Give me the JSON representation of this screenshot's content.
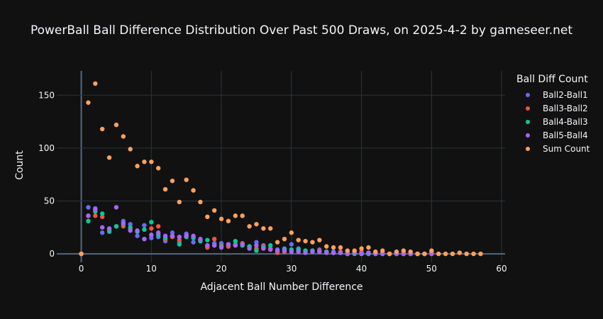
{
  "chart_data": {
    "type": "scatter",
    "title": "PowerBall Ball Difference Distribution Over Past 500 Draws, on 2025-4-2 by gameseer.net",
    "xlabel": "Adjacent Ball Number Difference",
    "ylabel": "Count",
    "xlim": [
      -3.5,
      60.5
    ],
    "ylim": [
      -8,
      173
    ],
    "xticks": [
      0,
      10,
      20,
      30,
      40,
      50,
      60
    ],
    "yticks": [
      0,
      50,
      100,
      150
    ],
    "legend_title": "Ball Diff Count",
    "legend_position": "right",
    "series": [
      {
        "name": "Ball2-Ball1",
        "color": "#636efa",
        "x": [
          0,
          1,
          2,
          3,
          4,
          5,
          6,
          7,
          8,
          9,
          10,
          11,
          12,
          13,
          14,
          15,
          16,
          17,
          18,
          19,
          20,
          21,
          22,
          23,
          24,
          25,
          26,
          27,
          28,
          29,
          30,
          31,
          32,
          33,
          34,
          35,
          36,
          37,
          38,
          39,
          40,
          41,
          42,
          43,
          44,
          45,
          46,
          47,
          48,
          49,
          50
        ],
        "y": [
          0,
          44,
          43,
          20,
          23,
          26,
          31,
          28,
          17,
          27,
          15,
          16,
          12,
          20,
          11,
          19,
          11,
          13,
          7,
          10,
          10,
          7,
          9,
          8,
          6,
          11,
          8,
          5,
          4,
          5,
          9,
          5,
          3,
          3,
          4,
          2,
          2,
          2,
          1,
          1,
          1,
          1,
          1,
          1,
          0,
          1,
          1,
          0,
          0,
          0,
          1
        ]
      },
      {
        "name": "Ball3-Ball2",
        "color": "#ef553b",
        "x": [
          0,
          1,
          2,
          3,
          4,
          5,
          6,
          7,
          8,
          9,
          10,
          11,
          12,
          13,
          14,
          15,
          16,
          17,
          18,
          19,
          20,
          21,
          22,
          23,
          24,
          25,
          26,
          27,
          28,
          29,
          30,
          31,
          32,
          33,
          34,
          35,
          36,
          37,
          38,
          39,
          40,
          41,
          42,
          43,
          44,
          45,
          46,
          47,
          48,
          49,
          50
        ],
        "y": [
          0,
          36,
          36,
          35,
          22,
          26,
          26,
          24,
          21,
          23,
          24,
          26,
          14,
          16,
          13,
          17,
          16,
          12,
          6,
          14,
          8,
          7,
          8,
          10,
          7,
          5,
          7,
          5,
          1,
          2,
          4,
          3,
          2,
          3,
          3,
          2,
          1,
          2,
          0,
          1,
          2,
          0,
          1,
          0,
          0,
          0,
          0,
          0,
          0,
          0,
          1
        ]
      },
      {
        "name": "Ball4-Ball3",
        "color": "#00cc96",
        "x": [
          0,
          1,
          2,
          3,
          4,
          5,
          6,
          7,
          8,
          9,
          10,
          11,
          12,
          13,
          14,
          15,
          16,
          17,
          18,
          19,
          20,
          21,
          22,
          23,
          24,
          25,
          26,
          27,
          28,
          29,
          30,
          31,
          32,
          33,
          34,
          35,
          36,
          37,
          38,
          39,
          40,
          41,
          42,
          43,
          44,
          45,
          46,
          47,
          48,
          49,
          50
        ],
        "y": [
          0,
          31,
          40,
          38,
          21,
          26,
          28,
          25,
          21,
          23,
          30,
          18,
          15,
          17,
          9,
          16,
          15,
          12,
          13,
          8,
          7,
          9,
          12,
          8,
          7,
          3,
          6,
          8,
          3,
          4,
          4,
          4,
          3,
          3,
          2,
          2,
          1,
          1,
          0,
          0,
          0,
          0,
          0,
          0,
          0,
          0,
          0,
          0,
          0,
          0,
          0
        ]
      },
      {
        "name": "Ball5-Ball4",
        "color": "#ab63fa",
        "x": [
          0,
          1,
          2,
          3,
          4,
          5,
          6,
          7,
          8,
          9,
          10,
          11,
          12,
          13,
          14,
          15,
          16,
          17,
          18,
          19,
          20,
          21,
          22,
          23,
          24,
          25,
          26,
          27,
          28,
          29,
          30,
          31,
          32,
          33,
          34,
          35,
          36,
          37,
          38,
          39,
          40,
          41,
          42,
          43,
          44,
          45,
          46,
          47,
          48,
          49,
          50
        ],
        "y": [
          0,
          36,
          42,
          25,
          24,
          44,
          29,
          22,
          22,
          14,
          18,
          20,
          17,
          17,
          16,
          17,
          17,
          14,
          8,
          8,
          6,
          9,
          8,
          9,
          5,
          8,
          5,
          4,
          3,
          3,
          2,
          2,
          1,
          2,
          2,
          1,
          1,
          1,
          0,
          1,
          0,
          1,
          0,
          0,
          0,
          0,
          0,
          0,
          0,
          0,
          0
        ]
      },
      {
        "name": "Sum Count",
        "color": "#ffa15a",
        "x": [
          0,
          1,
          2,
          3,
          4,
          5,
          6,
          7,
          8,
          9,
          10,
          11,
          12,
          13,
          14,
          15,
          16,
          17,
          18,
          19,
          20,
          21,
          22,
          23,
          24,
          25,
          26,
          27,
          28,
          29,
          30,
          31,
          32,
          33,
          34,
          35,
          36,
          37,
          38,
          39,
          40,
          41,
          42,
          43,
          44,
          45,
          46,
          47,
          48,
          49,
          50,
          51,
          52,
          53,
          54,
          55,
          56,
          57
        ],
        "y": [
          0,
          143,
          161,
          118,
          91,
          122,
          111,
          99,
          83,
          87,
          87,
          81,
          61,
          69,
          49,
          70,
          60,
          49,
          35,
          41,
          33,
          31,
          36,
          36,
          26,
          28,
          24,
          24,
          11,
          14,
          20,
          13,
          12,
          11,
          13,
          7,
          6,
          6,
          3,
          3,
          5,
          6,
          2,
          3,
          0,
          2,
          3,
          2,
          0,
          0,
          3,
          0,
          0,
          0,
          1,
          0,
          0,
          0
        ]
      }
    ]
  }
}
